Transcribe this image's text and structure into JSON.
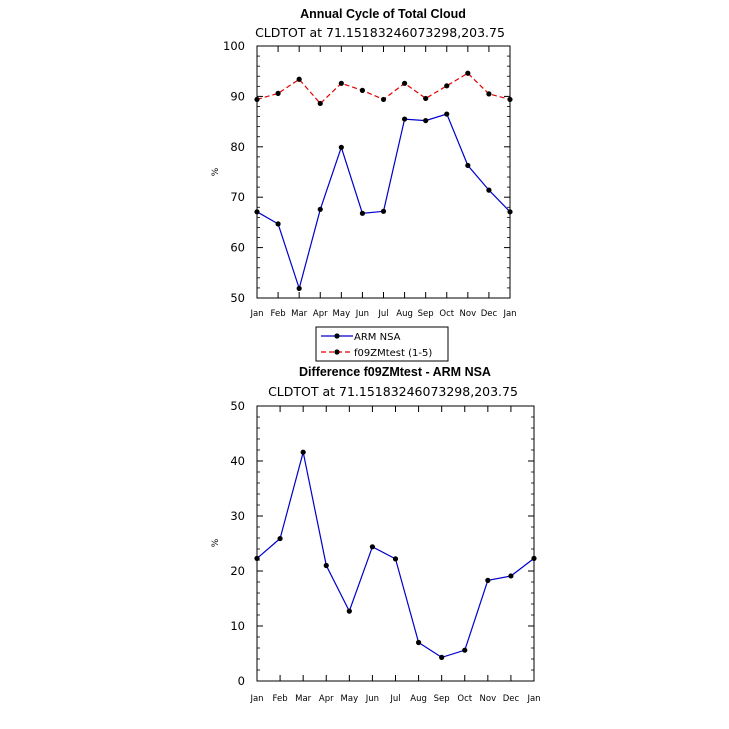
{
  "chart_data": [
    {
      "type": "line",
      "title": "Annual Cycle of Total Cloud",
      "subtitle": "CLDTOT at 71.15183246073298,203.75",
      "xlabel": "",
      "ylabel": "%",
      "categories": [
        "Jan",
        "Feb",
        "Mar",
        "Apr",
        "May",
        "Jun",
        "Jul",
        "Aug",
        "Sep",
        "Oct",
        "Nov",
        "Dec",
        "Jan"
      ],
      "ylim": [
        50,
        100
      ],
      "yticks": [
        50,
        60,
        70,
        80,
        90,
        100
      ],
      "series": [
        {
          "name": "ARM NSA",
          "color": "#0000cc",
          "style": "solid",
          "values": [
            67.1,
            64.7,
            51.9,
            67.6,
            79.9,
            66.8,
            67.2,
            85.5,
            85.2,
            86.5,
            76.3,
            71.4,
            67.1
          ]
        },
        {
          "name": "f09ZMtest (1-5)",
          "color": "#e00000",
          "style": "dashed",
          "values": [
            89.4,
            90.6,
            93.4,
            88.6,
            92.6,
            91.2,
            89.4,
            92.6,
            89.6,
            92.1,
            94.6,
            90.5,
            89.4
          ]
        }
      ],
      "legend_position": "bottom"
    },
    {
      "type": "line",
      "title": "Difference f09ZMtest - ARM NSA",
      "subtitle": "CLDTOT at 71.15183246073298,203.75",
      "xlabel": "",
      "ylabel": "%",
      "categories": [
        "Jan",
        "Feb",
        "Mar",
        "Apr",
        "May",
        "Jun",
        "Jul",
        "Aug",
        "Sep",
        "Oct",
        "Nov",
        "Dec",
        "Jan"
      ],
      "ylim": [
        0,
        50
      ],
      "yticks": [
        0,
        10,
        20,
        30,
        40,
        50
      ],
      "series": [
        {
          "name": "Difference",
          "color": "#0000cc",
          "style": "solid",
          "values": [
            22.3,
            25.9,
            41.6,
            21.0,
            12.7,
            24.4,
            22.2,
            7.0,
            4.3,
            5.6,
            18.3,
            19.1,
            22.3
          ]
        }
      ]
    }
  ]
}
